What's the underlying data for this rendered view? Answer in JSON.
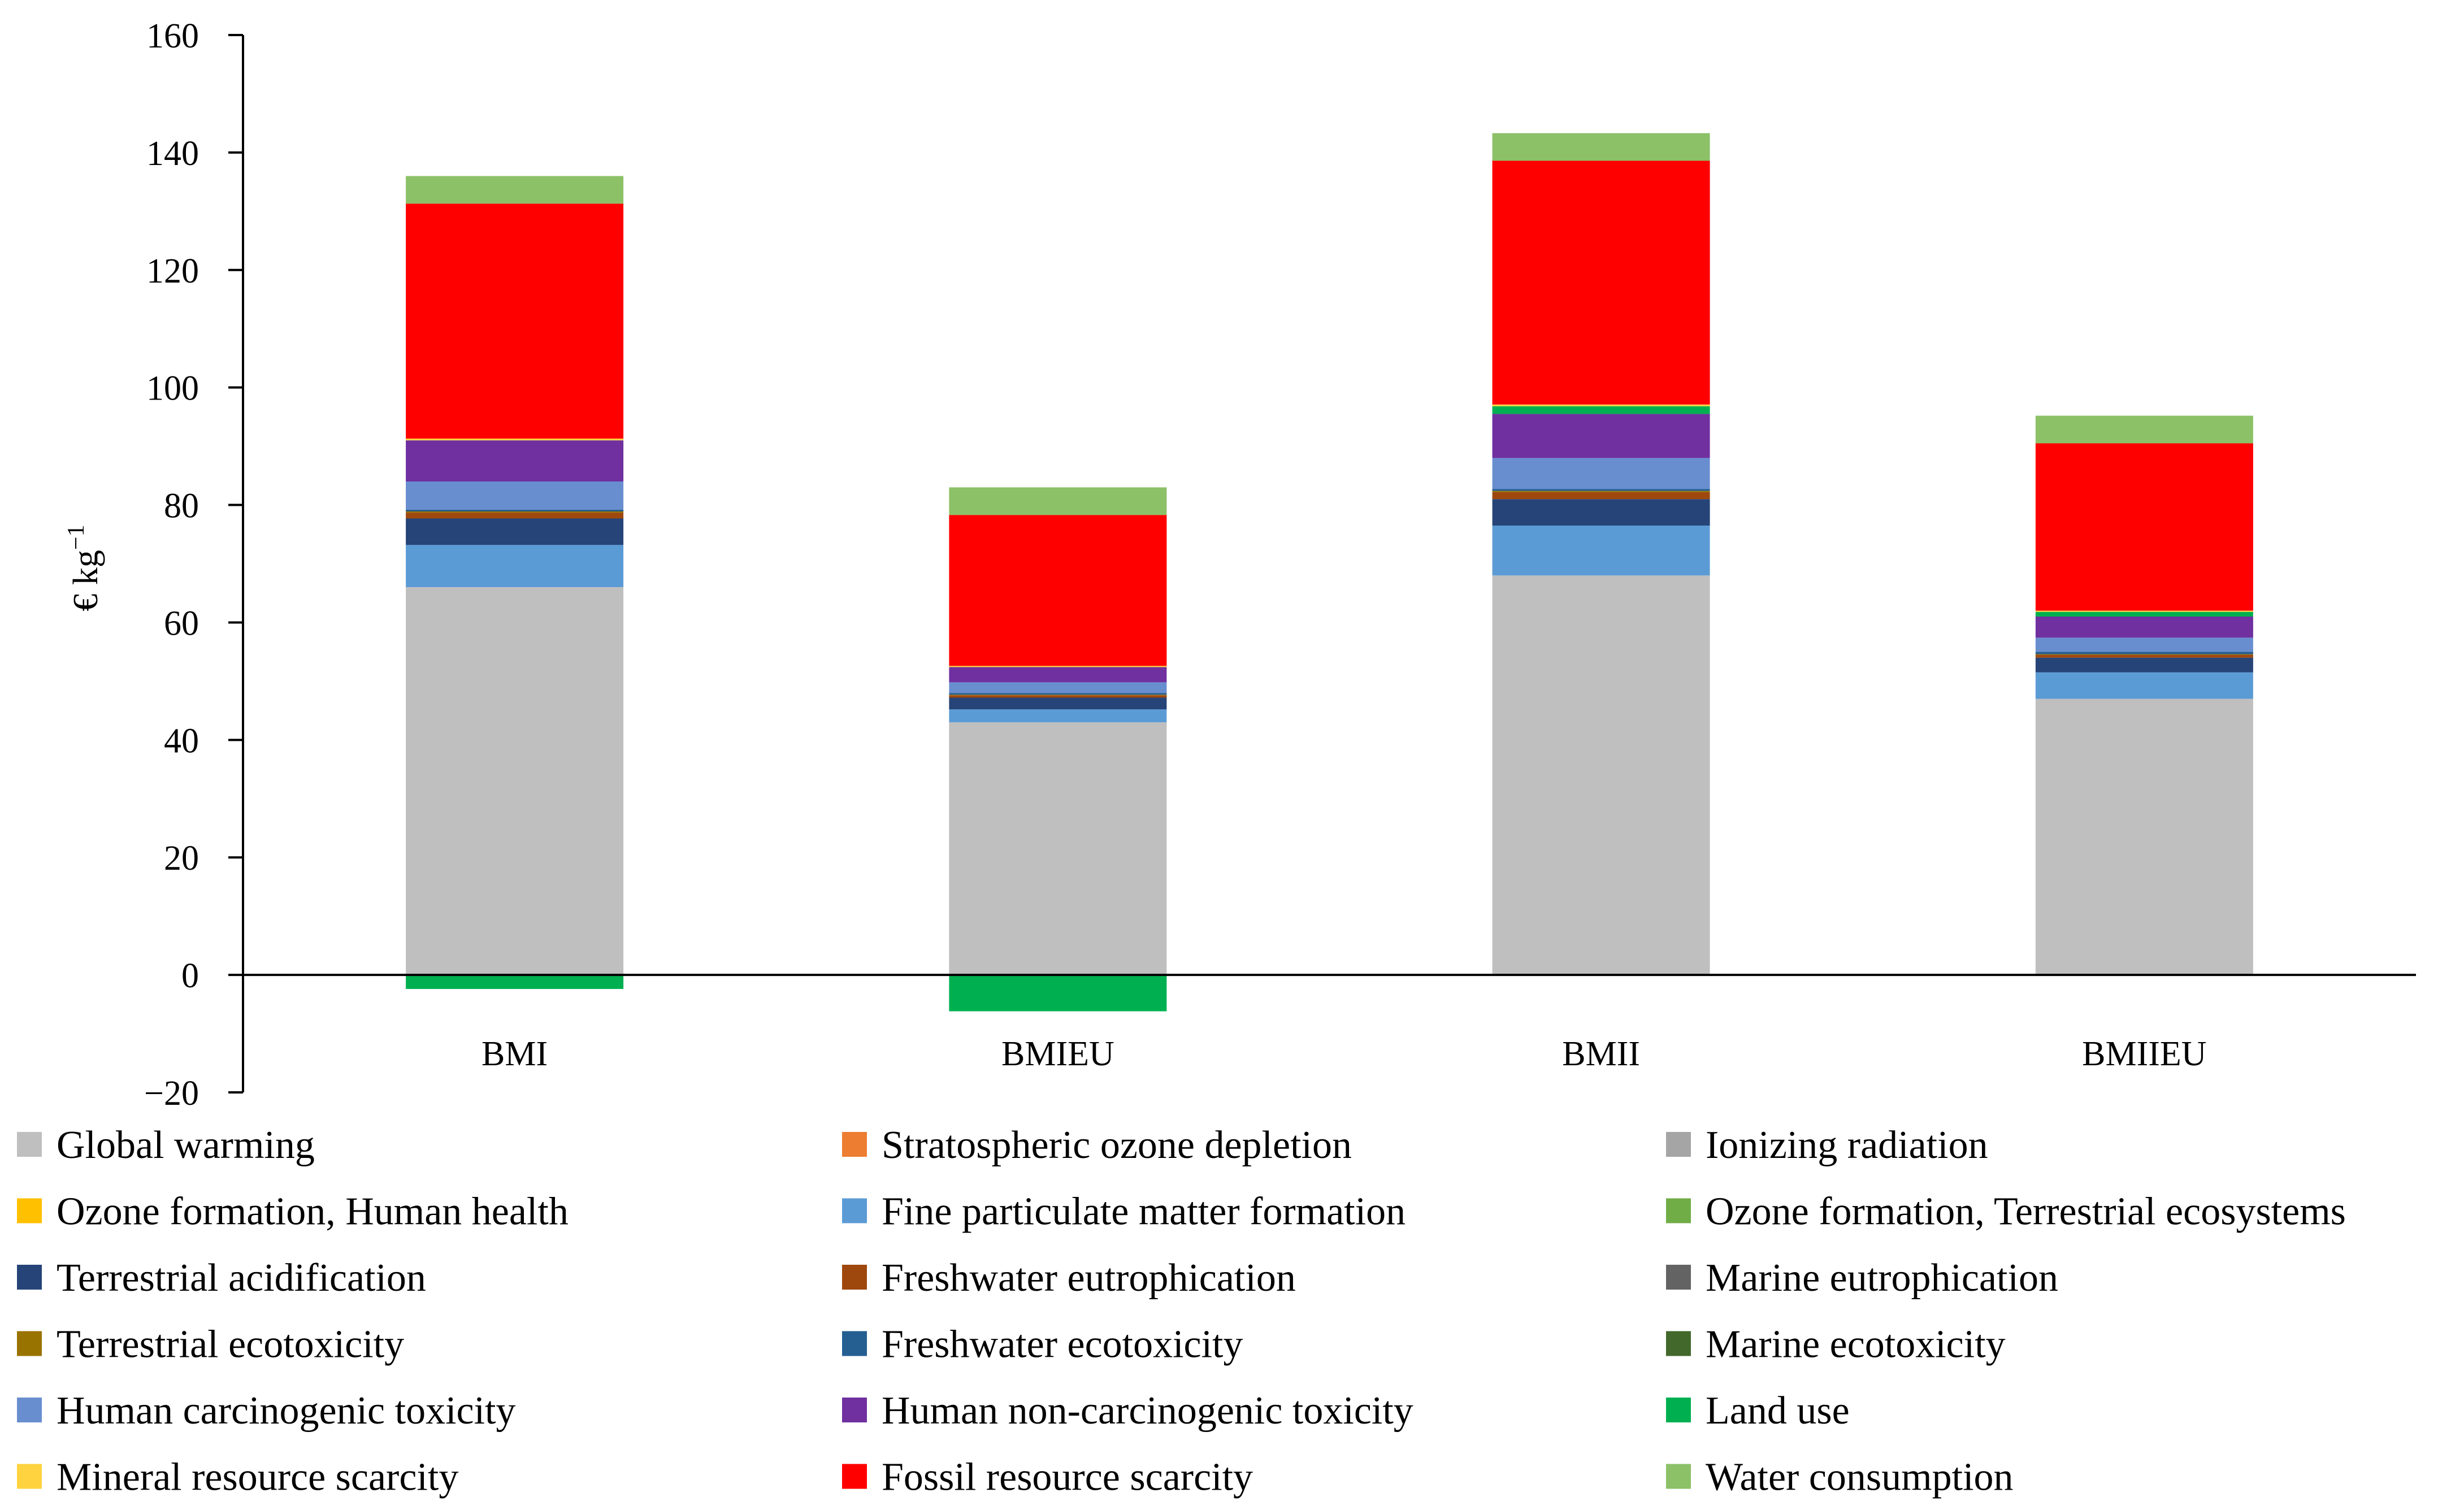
{
  "chart_data": {
    "type": "bar",
    "stacked": true,
    "title": "",
    "xlabel": "",
    "ylabel": "€ kg−1",
    "ylabel_parts": {
      "base": "€ kg",
      "superscript": "−1"
    },
    "ylim": [
      -20,
      160
    ],
    "yticks": [
      -20,
      0,
      20,
      40,
      60,
      80,
      100,
      120,
      140,
      160
    ],
    "ytick_labels": [
      "−20",
      "0",
      "20",
      "40",
      "60",
      "80",
      "100",
      "120",
      "140",
      "160"
    ],
    "grid": false,
    "legend_position": "bottom",
    "categories": [
      "BMI",
      "BMIEU",
      "BMII",
      "BMIIEU"
    ],
    "series": [
      {
        "name": "Global warming",
        "color": "#BFBFBF",
        "values": [
          66,
          43,
          68,
          47
        ]
      },
      {
        "name": "Stratospheric ozone depletion",
        "color": "#ED7D31",
        "values": [
          0,
          0,
          0,
          0
        ]
      },
      {
        "name": "Ionizing radiation",
        "color": "#A5A5A5",
        "values": [
          0,
          0,
          0,
          0
        ]
      },
      {
        "name": "Ozone formation, Human health",
        "color": "#FFC000",
        "values": [
          0,
          0,
          0,
          0
        ]
      },
      {
        "name": "Fine particulate matter formation",
        "color": "#5B9BD5",
        "values": [
          7.2,
          2.2,
          8.5,
          4.5
        ]
      },
      {
        "name": "Ozone formation, Terrestrial ecosystems",
        "color": "#70AD47",
        "values": [
          0,
          0,
          0,
          0
        ]
      },
      {
        "name": "Terrestrial acidification",
        "color": "#264478",
        "values": [
          4.5,
          2.0,
          4.5,
          2.5
        ]
      },
      {
        "name": "Freshwater eutrophication",
        "color": "#9E480E",
        "values": [
          1.0,
          0.4,
          1.2,
          0.5
        ]
      },
      {
        "name": "Marine eutrophication",
        "color": "#636363",
        "values": [
          0,
          0,
          0,
          0
        ]
      },
      {
        "name": "Terrestrial ecotoxicity",
        "color": "#997300",
        "values": [
          0.2,
          0.1,
          0.2,
          0.1
        ]
      },
      {
        "name": "Freshwater ecotoxicity",
        "color": "#255E91",
        "values": [
          0.3,
          0.3,
          0.3,
          0.4
        ]
      },
      {
        "name": "Marine ecotoxicity",
        "color": "#43682B",
        "values": [
          0,
          0,
          0,
          0
        ]
      },
      {
        "name": "Human carcinogenic toxicity",
        "color": "#698ED0",
        "values": [
          4.8,
          1.8,
          5.3,
          2.4
        ]
      },
      {
        "name": "Human non-carcinogenic toxicity",
        "color": "#7030A0",
        "values": [
          7.0,
          2.6,
          7.5,
          3.6
        ]
      },
      {
        "name": "Land use",
        "color": "#00B050",
        "values": [
          -2.4,
          -6.2,
          1.3,
          0.8
        ]
      },
      {
        "name": "Mineral resource scarcity",
        "color": "#FFD33F",
        "values": [
          0.3,
          0.2,
          0.3,
          0.2
        ]
      },
      {
        "name": "Fossil resource scarcity",
        "color": "#FF0000",
        "values": [
          40,
          25.7,
          41.5,
          28.5
        ]
      },
      {
        "name": "Water consumption",
        "color": "#8CC168",
        "values": [
          4.7,
          4.7,
          4.7,
          4.7
        ]
      }
    ]
  }
}
